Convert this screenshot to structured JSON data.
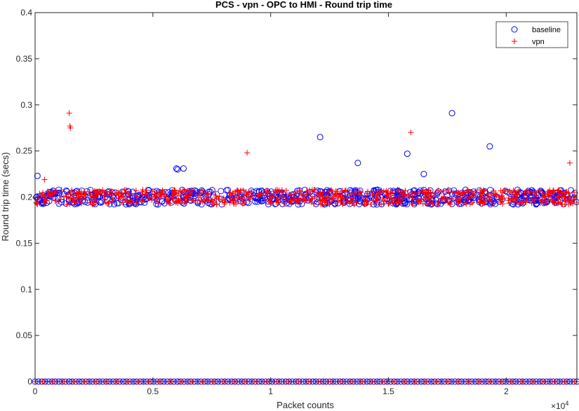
{
  "chart_data": {
    "type": "scatter",
    "title": "PCS - vpn - OPC to HMI - Round trip time",
    "xlabel": "Packet counts",
    "ylabel": "Round trip time (secs)",
    "x_exponent_label": "×10",
    "x_exponent_power": "4",
    "xlim": [
      0,
      23000
    ],
    "ylim": [
      0,
      0.4
    ],
    "x_ticks": [
      0,
      5000,
      10000,
      15000,
      20000
    ],
    "x_tick_labels": [
      "0",
      "0.5",
      "1",
      "1.5",
      "2"
    ],
    "y_ticks": [
      0,
      0.05,
      0.1,
      0.15,
      0.2,
      0.25,
      0.3,
      0.35,
      0.4
    ],
    "y_tick_labels": [
      "0",
      "0.05",
      "0.1",
      "0.15",
      "0.2",
      "0.25",
      "0.3",
      "0.35",
      "0.4"
    ],
    "grid": false,
    "legend_position": "top-right",
    "dense_band": {
      "y_min": 0.192,
      "y_max": 0.208,
      "x_range": [
        0,
        23000
      ]
    },
    "zero_band": {
      "y": 0,
      "x_range": [
        0,
        23000
      ]
    },
    "series": [
      {
        "name": "baseline",
        "marker": "circle",
        "color": "#0000ff",
        "outliers": [
          {
            "x": 100,
            "y": 0.223
          },
          {
            "x": 6000,
            "y": 0.231
          },
          {
            "x": 6050,
            "y": 0.23
          },
          {
            "x": 6300,
            "y": 0.231
          },
          {
            "x": 12100,
            "y": 0.265
          },
          {
            "x": 13700,
            "y": 0.237
          },
          {
            "x": 15800,
            "y": 0.247
          },
          {
            "x": 16500,
            "y": 0.225
          },
          {
            "x": 17700,
            "y": 0.291
          },
          {
            "x": 19300,
            "y": 0.255
          }
        ]
      },
      {
        "name": "vpn",
        "marker": "plus",
        "color": "#ff0000",
        "outliers": [
          {
            "x": 400,
            "y": 0.219
          },
          {
            "x": 1450,
            "y": 0.291
          },
          {
            "x": 1480,
            "y": 0.277
          },
          {
            "x": 1500,
            "y": 0.275
          },
          {
            "x": 9000,
            "y": 0.248
          },
          {
            "x": 15950,
            "y": 0.27
          },
          {
            "x": 22700,
            "y": 0.237
          }
        ]
      }
    ]
  }
}
